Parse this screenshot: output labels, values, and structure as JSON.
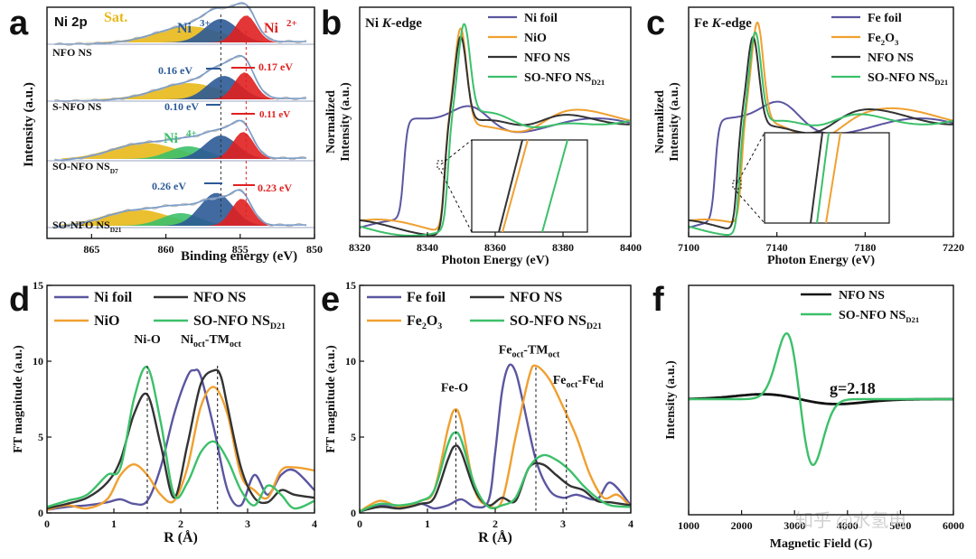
{
  "chart_data": [
    {
      "panel": "a",
      "type": "line",
      "title": "Ni 2p",
      "xlabel": "Binding energy (eV)",
      "ylabel": "Intensity (a.u.)",
      "xlim": [
        850,
        868
      ],
      "x_reversed": true,
      "xticks": [
        "865",
        "860",
        "855",
        "850"
      ],
      "peak_labels": [
        "Sat.",
        "Ni3+",
        "Ni2+",
        "Ni4+"
      ],
      "series": [
        {
          "name": "NFO NS",
          "peaks": {
            "sat": 858.5,
            "Ni3+": 856.3,
            "Ni2+": 854.6
          }
        },
        {
          "name": "S-NFO NS",
          "peaks": {
            "sat": 858.5,
            "Ni3+": 856.1,
            "Ni2+": 854.7
          }
        },
        {
          "name": "SO-NFO NS_D7",
          "peaks": {
            "sat": 861.5,
            "Ni4+": 858.5,
            "Ni3+": 856.3,
            "Ni2+": 854.8
          }
        },
        {
          "name": "SO-NFO NS_D21",
          "peaks": {
            "sat": 862.0,
            "Ni4+": 859.0,
            "Ni3+": 856.6,
            "Ni2+": 854.9
          }
        }
      ],
      "annotations": [
        "0.16 eV",
        "0.17 eV",
        "0.10 eV",
        "0.11 eV",
        "0.26 eV",
        "0.23 eV"
      ],
      "series_labels": {
        "NFO NS": "NFO NS",
        "S-NFO NS": "S-NFO NS",
        "SO-NFO NS_D7": "SO-NFO NS",
        "SO-NFO NS_D7_sub": "D7",
        "SO-NFO NS_D21": "SO-NFO NS",
        "SO-NFO NS_D21_sub": "D21"
      }
    },
    {
      "panel": "b",
      "type": "line",
      "title": "Ni K-edge",
      "xlabel": "Photon Energy (eV)",
      "ylabel": "Normalized Intensity (a.u.)",
      "xlim": [
        8320,
        8400
      ],
      "xticks": [
        "8320",
        "8340",
        "8360",
        "8380",
        "8400"
      ],
      "series": [
        {
          "name": "Ni foil",
          "color": "#5b56a0",
          "edge": 8333
        },
        {
          "name": "NiO",
          "color": "#f0a030",
          "edge": 8345
        },
        {
          "name": "NFO NS",
          "color": "#333333",
          "edge": 8345
        },
        {
          "name": "SO-NFO NS_D21",
          "color": "#3cc06a",
          "edge": 8346
        }
      ]
    },
    {
      "panel": "c",
      "type": "line",
      "title": "Fe K-edge",
      "xlabel": "Photon Energy (eV)",
      "ylabel": "Normalized Intensity (a.u.)",
      "xlim": [
        7100,
        7220
      ],
      "xticks": [
        "7100",
        "7140",
        "7180",
        "7220"
      ],
      "series": [
        {
          "name": "Fe foil",
          "color": "#5b56a0",
          "edge": 7112
        },
        {
          "name": "Fe2O3",
          "color": "#f0a030",
          "edge": 7124
        },
        {
          "name": "NFO NS",
          "color": "#333333",
          "edge": 7122
        },
        {
          "name": "SO-NFO NS_D21",
          "color": "#3cc06a",
          "edge": 7123
        }
      ]
    },
    {
      "panel": "d",
      "type": "line",
      "xlabel": "R (Å)",
      "ylabel": "FT magnitude (a.u.)",
      "xlim": [
        0,
        4
      ],
      "ylim": [
        0,
        15
      ],
      "xticks": [
        "0",
        "1",
        "2",
        "3",
        "4"
      ],
      "yticks": [
        "0",
        "5",
        "10",
        "15"
      ],
      "annotations": [
        "Ni-O",
        "Ni",
        "oct",
        "-TM",
        "oct"
      ],
      "series": [
        {
          "name": "Ni foil",
          "color": "#5b56a0",
          "x": [
            0,
            0.3,
            0.6,
            0.9,
            1.1,
            1.3,
            1.5,
            1.7,
            1.9,
            2.1,
            2.2,
            2.3,
            2.5,
            2.7,
            2.9,
            3.1,
            3.3,
            3.5,
            3.7,
            4.0
          ],
          "y": [
            0.2,
            0.4,
            0.5,
            0.7,
            0.9,
            0.6,
            0.8,
            3.0,
            6.5,
            9.0,
            9.4,
            9.0,
            5.5,
            1.5,
            0.5,
            2.5,
            1.2,
            2.5,
            2.8,
            1.5
          ]
        },
        {
          "name": "NiO",
          "color": "#f0a030",
          "x": [
            0,
            0.3,
            0.6,
            0.9,
            1.1,
            1.3,
            1.5,
            1.7,
            1.9,
            2.1,
            2.3,
            2.5,
            2.7,
            2.9,
            3.1,
            3.3,
            3.5,
            3.7,
            4.0
          ],
          "y": [
            0.2,
            0.5,
            0.3,
            0.9,
            2.5,
            3.2,
            2.5,
            1.2,
            0.8,
            3.0,
            7.0,
            8.3,
            6.5,
            2.5,
            1.5,
            1.0,
            2.8,
            3.0,
            2.8
          ]
        },
        {
          "name": "NFO NS",
          "color": "#333333",
          "x": [
            0,
            0.3,
            0.6,
            0.9,
            1.1,
            1.3,
            1.5,
            1.7,
            1.9,
            2.1,
            2.3,
            2.5,
            2.6,
            2.7,
            2.9,
            3.1,
            3.3,
            3.5,
            3.7,
            4.0
          ],
          "y": [
            0.3,
            0.6,
            1.0,
            2.0,
            3.5,
            6.5,
            7.8,
            4.5,
            1.0,
            4.5,
            8.5,
            9.4,
            9.0,
            7.0,
            3.0,
            1.0,
            0.7,
            1.5,
            1.2,
            1.0
          ]
        },
        {
          "name": "SO-NFO NS_D21",
          "color": "#3cc06a",
          "x": [
            0,
            0.3,
            0.6,
            0.9,
            1.1,
            1.3,
            1.5,
            1.7,
            1.9,
            2.1,
            2.3,
            2.5,
            2.7,
            2.9,
            3.1,
            3.3,
            3.5,
            3.7,
            4.0
          ],
          "y": [
            0.4,
            0.8,
            1.2,
            2.5,
            3.0,
            7.5,
            9.6,
            6.0,
            1.2,
            2.0,
            4.0,
            4.7,
            3.5,
            1.5,
            0.5,
            1.8,
            1.2,
            0.3,
            0.8
          ]
        }
      ]
    },
    {
      "panel": "e",
      "type": "line",
      "xlabel": "R (Å)",
      "ylabel": "FT magnitude (a.u.)",
      "xlim": [
        0,
        4
      ],
      "ylim": [
        0,
        15
      ],
      "xticks": [
        "0",
        "1",
        "2",
        "3",
        "4"
      ],
      "yticks": [
        "0",
        "5",
        "10",
        "15"
      ],
      "annotations": [
        "Fe-O",
        "Fe",
        "oct",
        "-TM",
        "oct",
        "Fe",
        "oct",
        "-Fe",
        "td"
      ],
      "series": [
        {
          "name": "Fe foil",
          "color": "#5b56a0",
          "x": [
            0,
            0.3,
            0.6,
            0.9,
            1.1,
            1.3,
            1.5,
            1.7,
            1.9,
            2.0,
            2.1,
            2.2,
            2.3,
            2.4,
            2.6,
            2.8,
            3.0,
            3.2,
            3.5,
            3.7,
            4.0
          ],
          "y": [
            0.1,
            0.5,
            0.3,
            0.6,
            0.3,
            0.5,
            0.9,
            0.4,
            0.8,
            4.0,
            8.0,
            9.7,
            9.3,
            7.5,
            3.5,
            1.5,
            1.0,
            1.2,
            0.9,
            2.0,
            0.5
          ]
        },
        {
          "name": "Fe2O3",
          "color": "#f0a030",
          "x": [
            0,
            0.3,
            0.6,
            0.9,
            1.1,
            1.3,
            1.4,
            1.5,
            1.7,
            1.9,
            2.1,
            2.3,
            2.5,
            2.6,
            2.8,
            3.0,
            3.2,
            3.4,
            3.6,
            3.8,
            4.0
          ],
          "y": [
            0.1,
            0.8,
            0.4,
            0.8,
            1.5,
            5.5,
            6.8,
            6.0,
            1.5,
            0.5,
            0.8,
            5.0,
            9.0,
            9.7,
            8.8,
            7.0,
            5.0,
            2.5,
            1.0,
            1.2,
            0.4
          ]
        },
        {
          "name": "NFO NS",
          "color": "#333333",
          "x": [
            0,
            0.3,
            0.6,
            0.9,
            1.1,
            1.3,
            1.4,
            1.5,
            1.7,
            1.9,
            2.1,
            2.3,
            2.5,
            2.7,
            2.9,
            3.1,
            3.3,
            3.5,
            3.7,
            4.0
          ],
          "y": [
            0.1,
            0.4,
            0.3,
            0.6,
            1.0,
            3.5,
            4.4,
            4.0,
            1.5,
            0.5,
            1.0,
            0.8,
            3.0,
            3.2,
            2.5,
            1.8,
            1.5,
            0.8,
            0.7,
            0.5
          ]
        },
        {
          "name": "SO-NFO NS_D21",
          "color": "#3cc06a",
          "x": [
            0,
            0.3,
            0.6,
            0.9,
            1.1,
            1.3,
            1.4,
            1.5,
            1.7,
            1.9,
            2.1,
            2.3,
            2.5,
            2.7,
            2.9,
            3.1,
            3.3,
            3.5,
            3.7,
            4.0
          ],
          "y": [
            0.1,
            0.6,
            0.5,
            0.8,
            1.5,
            4.5,
            5.3,
            4.8,
            1.8,
            0.4,
            0.5,
            1.0,
            3.0,
            3.8,
            3.5,
            2.8,
            1.8,
            1.0,
            0.5,
            0.4
          ]
        }
      ]
    },
    {
      "panel": "f",
      "type": "line",
      "xlabel": "Magnetic Field (G)",
      "ylabel": "Intensity (a.u.)",
      "xlim": [
        1000,
        6000
      ],
      "xticks": [
        "1000",
        "2000",
        "3000",
        "4000",
        "5000",
        "6000"
      ],
      "annotations": [
        "g=2.18"
      ],
      "series": [
        {
          "name": "NFO NS",
          "color": "#111111",
          "center": 3100,
          "amp": 0.6
        },
        {
          "name": "SO-NFO NS_D21",
          "color": "#3cc06a",
          "center": 3100,
          "amp": 4.8
        }
      ]
    }
  ],
  "panel_letters": [
    "a",
    "b",
    "c",
    "d",
    "e",
    "f"
  ],
  "legend_b": [
    {
      "main": "Ni foil"
    },
    {
      "main": "NiO"
    },
    {
      "main": "NFO NS"
    },
    {
      "main": "SO-NFO NS",
      "sub": "D21"
    }
  ],
  "legend_c": [
    {
      "main": "Fe foil"
    },
    {
      "main": "Fe",
      "sub": "2",
      "tail": "O",
      "sub2": "3"
    },
    {
      "main": "NFO NS"
    },
    {
      "main": "SO-NFO NS",
      "sub": "D21"
    }
  ],
  "legend_d": [
    {
      "main": "Ni foil"
    },
    {
      "main": "NFO NS"
    },
    {
      "main": "NiO"
    },
    {
      "main": "SO-NFO NS",
      "sub": "D21"
    }
  ],
  "legend_e": [
    {
      "main": "Fe foil"
    },
    {
      "main": "NFO NS"
    },
    {
      "main": "Fe",
      "sub": "2",
      "tail": "O",
      "sub2": "3"
    },
    {
      "main": "SO-NFO NS",
      "sub": "D21"
    }
  ],
  "legend_f": [
    {
      "main": "NFO NS"
    },
    {
      "main": "SO-NFO NS",
      "sub": "D21"
    }
  ],
  "watermark": "知乎 @水氢电",
  "colors": {
    "purple": "#5b56a0",
    "orange": "#f0a030",
    "black": "#333333",
    "green": "#3cc06a",
    "nickel_red": "#e02020",
    "ni3_blue": "#2c5a96",
    "sat_yellow": "#e8b81a",
    "ni4_green": "#3cc06a"
  }
}
